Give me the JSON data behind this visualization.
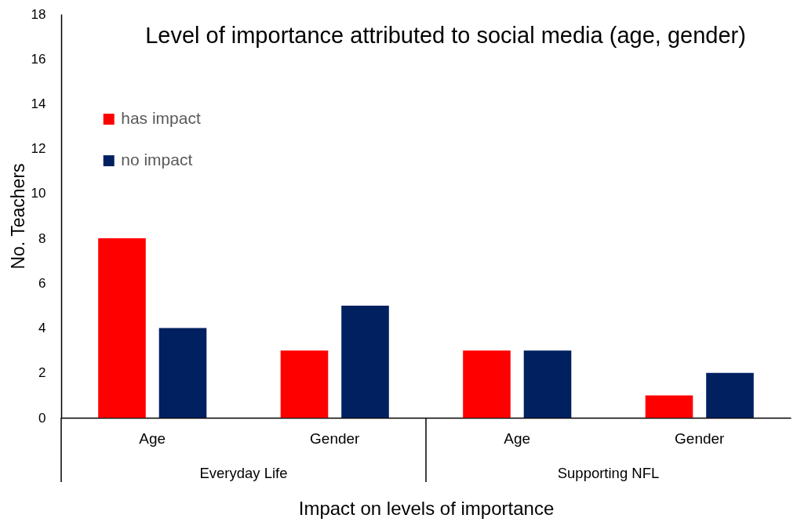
{
  "chart_data": {
    "type": "bar",
    "title": "Level of importance attributed to social media (age, gender)",
    "xlabel": "Impact on levels of importance",
    "ylabel": "No. Teachers",
    "categories": [
      "Age",
      "Gender",
      "Age",
      "Gender"
    ],
    "series": [
      {
        "name": "has impact",
        "color": "#ff0000",
        "values": [
          8,
          3,
          3,
          1
        ]
      },
      {
        "name": "no impact",
        "color": "#002060",
        "values": [
          4,
          5,
          3,
          2
        ]
      }
    ],
    "ylim": [
      0,
      18
    ],
    "yticks": [
      0,
      2,
      4,
      6,
      8,
      10,
      12,
      14,
      16,
      18
    ],
    "legend": "top left",
    "annotations": [
      "Everyday Life",
      "Supporting NFL"
    ]
  }
}
